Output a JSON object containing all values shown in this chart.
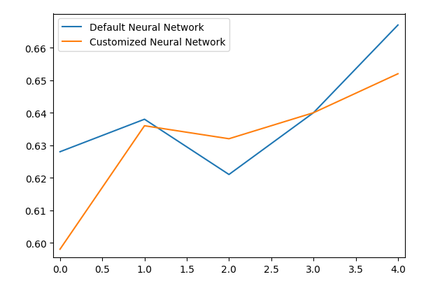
{
  "x": [
    0,
    1,
    2,
    3,
    4
  ],
  "default_nn": [
    0.628,
    0.638,
    0.621,
    0.64,
    0.667
  ],
  "custom_nn": [
    0.598,
    0.636,
    0.632,
    0.64,
    0.652
  ],
  "default_color": "#1f77b4",
  "custom_color": "#ff7f0e",
  "default_label": "Default Neural Network",
  "custom_label": "Customized Neural Network",
  "xlim": [
    -0.08,
    4.08
  ],
  "ylim": [
    0.5955,
    0.6705
  ],
  "xticks": [
    0.0,
    0.5,
    1.0,
    1.5,
    2.0,
    2.5,
    3.0,
    3.5,
    4.0
  ],
  "yticks": [
    0.6,
    0.61,
    0.62,
    0.63,
    0.64,
    0.65,
    0.66
  ],
  "linewidth": 1.5,
  "figsize": [
    6.09,
    4.1
  ],
  "dpi": 100
}
